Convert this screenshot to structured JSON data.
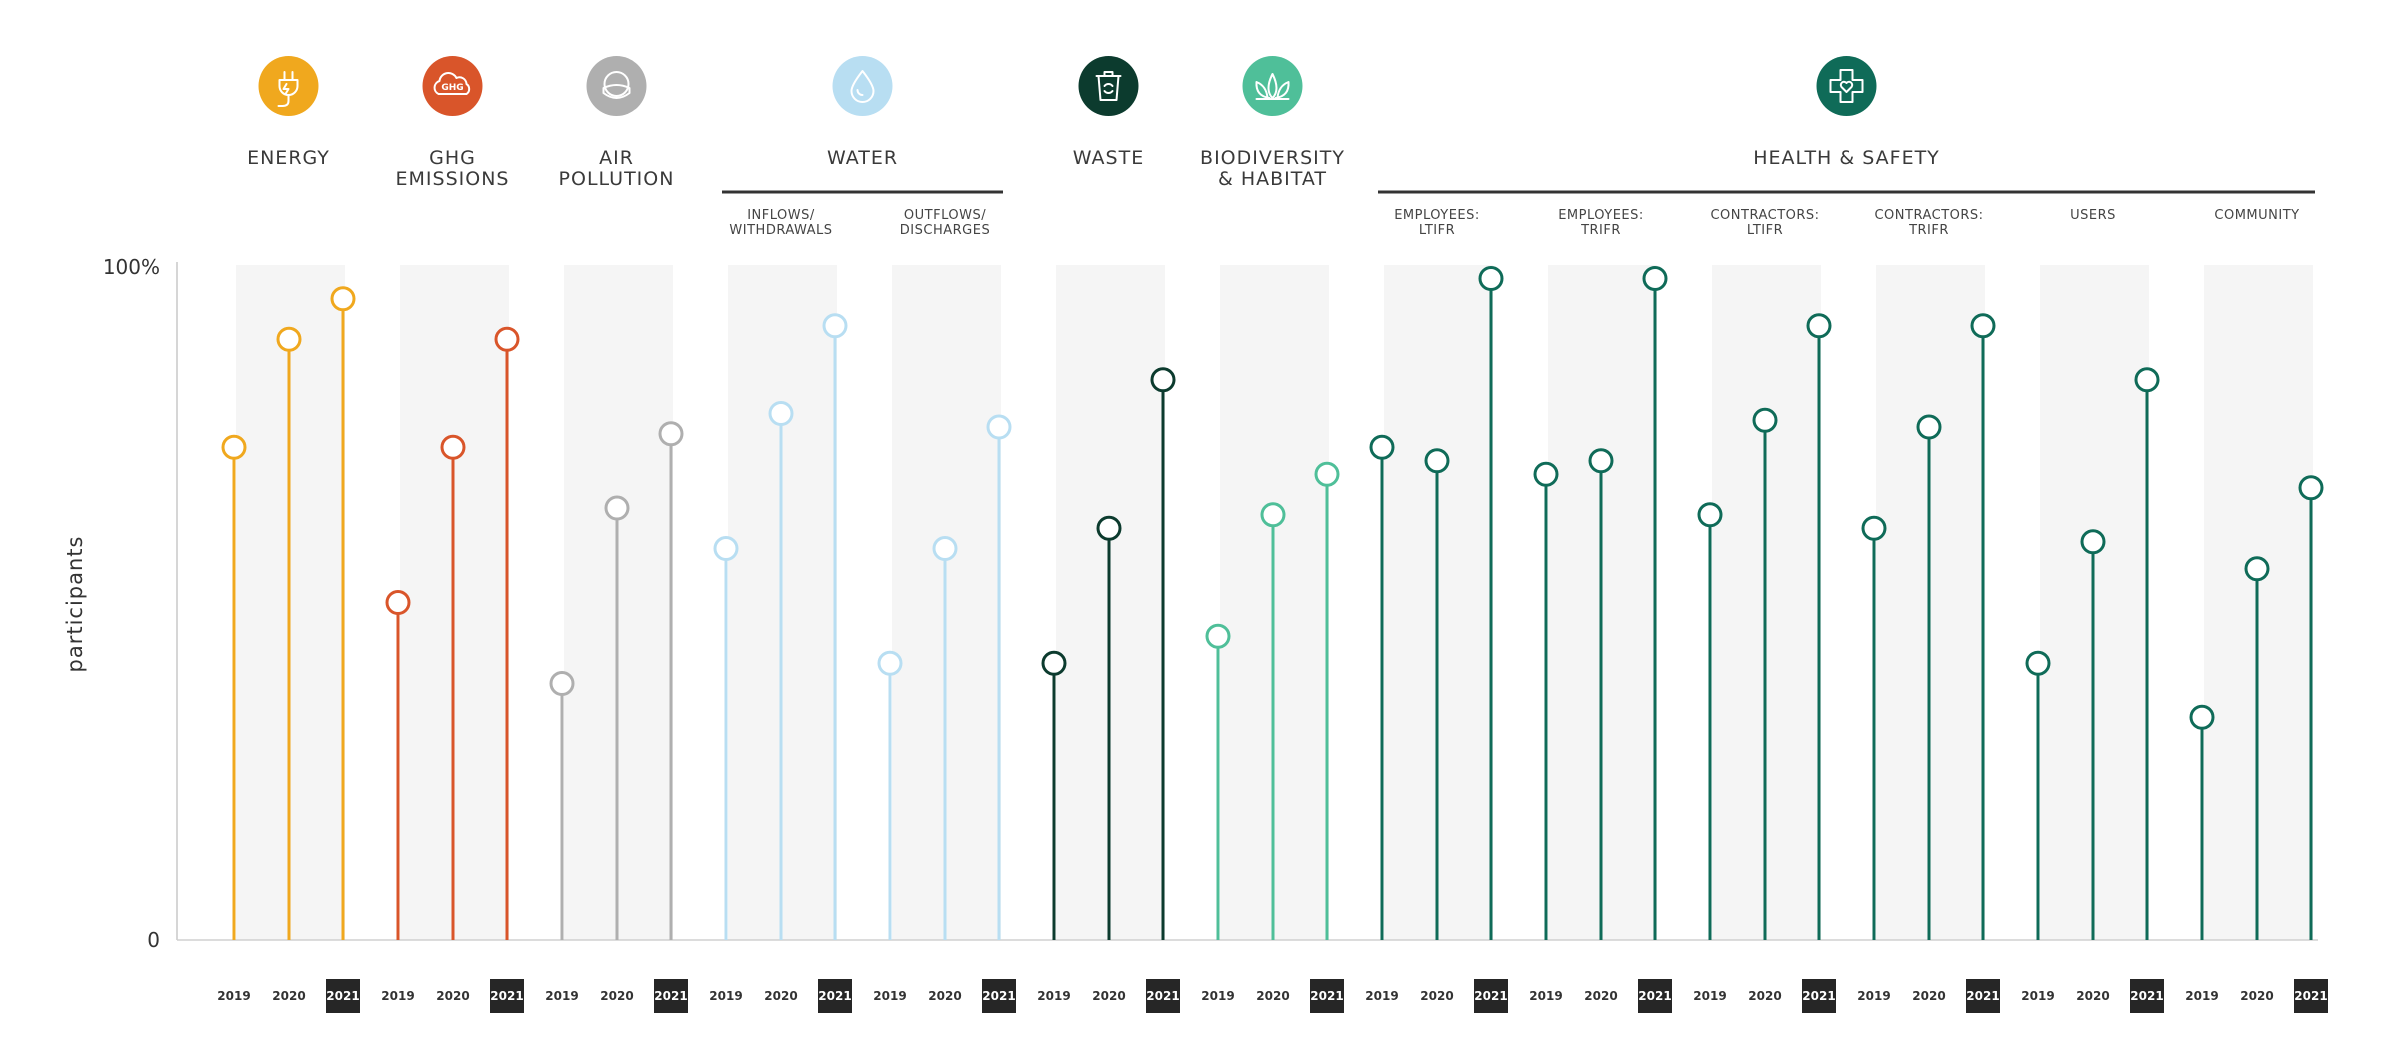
{
  "chart_data": {
    "type": "lollipop",
    "ylabel": "participants",
    "ylim": [
      0,
      100
    ],
    "yticks": [
      {
        "value": 0,
        "label": "0"
      },
      {
        "value": 100,
        "label": "100%"
      }
    ],
    "years": [
      "2019",
      "2020",
      "2021"
    ],
    "highlight_year": "2021",
    "groups": [
      {
        "name": [
          "ENERGY"
        ],
        "icon": "energy-plug-icon",
        "color": "#F0A81E",
        "dark": false,
        "columns": [
          {
            "sublabel": [],
            "values": [
              73,
              89,
              95
            ]
          }
        ]
      },
      {
        "name": [
          "GHG",
          "EMISSIONS"
        ],
        "icon": "ghg-cloud-icon",
        "color": "#D9552A",
        "dark": false,
        "columns": [
          {
            "sublabel": [],
            "values": [
              50,
              73,
              89
            ]
          }
        ]
      },
      {
        "name": [
          "AIR",
          "POLLUTION"
        ],
        "icon": "air-mask-icon",
        "color": "#AFAFAF",
        "dark": false,
        "columns": [
          {
            "sublabel": [],
            "values": [
              38,
              64,
              75
            ]
          }
        ]
      },
      {
        "name": [
          "WATER"
        ],
        "icon": "water-drop-icon",
        "color": "#B8DEF2",
        "dark": false,
        "columns": [
          {
            "sublabel": [
              "INFLOWS/",
              "WITHDRAWALS"
            ],
            "values": [
              58,
              78,
              91
            ]
          },
          {
            "sublabel": [
              "OUTFLOWS/",
              "DISCHARGES"
            ],
            "values": [
              41,
              58,
              76
            ]
          }
        ]
      },
      {
        "name": [
          "WASTE"
        ],
        "icon": "waste-bin-icon",
        "color": "#0C3B2E",
        "dark": true,
        "columns": [
          {
            "sublabel": [],
            "values": [
              41,
              61,
              83
            ]
          }
        ]
      },
      {
        "name": [
          "BIODIVERSITY",
          "& HABITAT"
        ],
        "icon": "biodiversity-leaf-icon",
        "color": "#4FBF99",
        "dark": false,
        "columns": [
          {
            "sublabel": [],
            "values": [
              45,
              63,
              69
            ]
          }
        ]
      },
      {
        "name": [
          "HEALTH & SAFETY"
        ],
        "icon": "health-safety-cross-icon",
        "color": "#0F6B58",
        "dark": true,
        "columns": [
          {
            "sublabel": [
              "EMPLOYEES:",
              "LTIFR"
            ],
            "values": [
              73,
              71,
              98
            ]
          },
          {
            "sublabel": [
              "EMPLOYEES:",
              "TRIFR"
            ],
            "values": [
              69,
              71,
              98
            ]
          },
          {
            "sublabel": [
              "CONTRACTORS:",
              "LTIFR"
            ],
            "values": [
              63,
              77,
              91
            ]
          },
          {
            "sublabel": [
              "CONTRACTORS:",
              "TRIFR"
            ],
            "values": [
              61,
              76,
              91
            ]
          },
          {
            "sublabel": [
              "USERS"
            ],
            "values": [
              41,
              59,
              83
            ]
          },
          {
            "sublabel": [
              "COMMUNITY"
            ],
            "values": [
              33,
              55,
              67
            ]
          }
        ]
      }
    ]
  }
}
